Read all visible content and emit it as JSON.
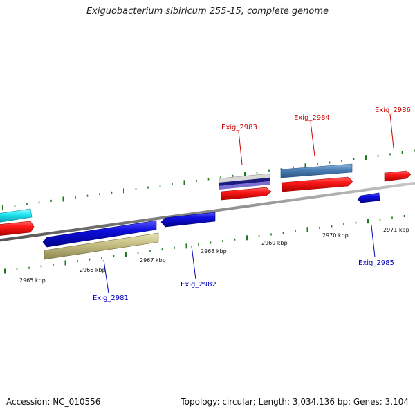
{
  "title": "Exiguobacterium sibiricum 255-15, complete genome",
  "footer": {
    "accession": "Accession: NC_010556",
    "topology": "Topology: circular; Length: 3,034,136 bp; Genes: 3,104"
  },
  "colors": {
    "backbone": "#8a8a8a",
    "tick": "#1e7a1e",
    "forward_label": "#cc0000",
    "reverse_label": "#0000bb"
  },
  "scale": {
    "unit": "kbp",
    "positions": [
      2965,
      2966,
      2967,
      2968,
      2969,
      2970,
      2971
    ],
    "labels": [
      "2965 kbp",
      "2966 kbp",
      "2967 kbp",
      "2968 kbp",
      "2969 kbp",
      "2970 kbp",
      "2971 kbp"
    ]
  },
  "genes": [
    {
      "label": "Exig_2981",
      "strand": "reverse",
      "color": "#1010d8",
      "start_kbp": 2965.2,
      "end_kbp": 2966.9
    },
    {
      "label": "Exig_2982",
      "strand": "reverse",
      "color": "#1010d8",
      "start_kbp": 2967.1,
      "end_kbp": 2967.9
    },
    {
      "label": "Exig_2983",
      "strand": "forward",
      "color": "#ee1111",
      "start_kbp": 2968.4,
      "end_kbp": 2969.2
    },
    {
      "label": "Exig_2984",
      "strand": "forward",
      "color": "#ee1111",
      "start_kbp": 2969.4,
      "end_kbp": 2970.5
    },
    {
      "label": "Exig_2985",
      "strand": "reverse",
      "color": "#1010d8",
      "start_kbp": 2970.4,
      "end_kbp": 2970.7
    },
    {
      "label": "Exig_2986",
      "strand": "forward",
      "color": "#ee1111",
      "start_kbp": 2970.9,
      "end_kbp": 2971.3
    }
  ]
}
